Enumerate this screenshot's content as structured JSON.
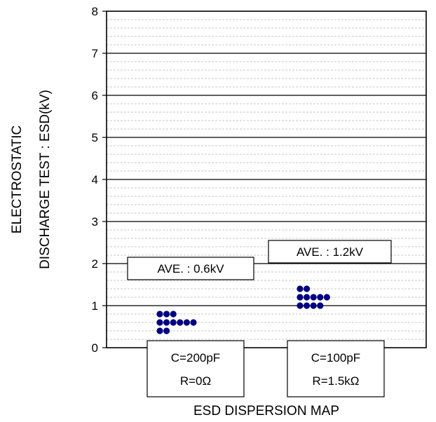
{
  "chart_data": {
    "type": "scatter",
    "title": "",
    "xlabel": "ESD DISPERSION MAP",
    "ylabel_lines": [
      "ELECTROSTATIC",
      "DISCHARGE TEST : ESD(kV)"
    ],
    "ylim": [
      0,
      8
    ],
    "yticks": [
      0,
      1,
      2,
      3,
      4,
      5,
      6,
      7,
      8
    ],
    "major_grid": true,
    "minor_grid": true,
    "categories": [
      {
        "line1": "C=200pF",
        "line2": "R=0Ω"
      },
      {
        "line1": "C=100pF",
        "line2": "R=1.5kΩ"
      }
    ],
    "series": [
      {
        "average_label": "AVE. : 0.6kV",
        "color": "#000080",
        "values": [
          0.4,
          0.4,
          0.6,
          0.6,
          0.6,
          0.6,
          0.6,
          0.6,
          0.8,
          0.8,
          0.8
        ]
      },
      {
        "average_label": "AVE. : 1.2kV",
        "color": "#000080",
        "values": [
          1.0,
          1.0,
          1.0,
          1.0,
          1.2,
          1.2,
          1.2,
          1.2,
          1.2,
          1.4,
          1.4
        ]
      }
    ]
  }
}
